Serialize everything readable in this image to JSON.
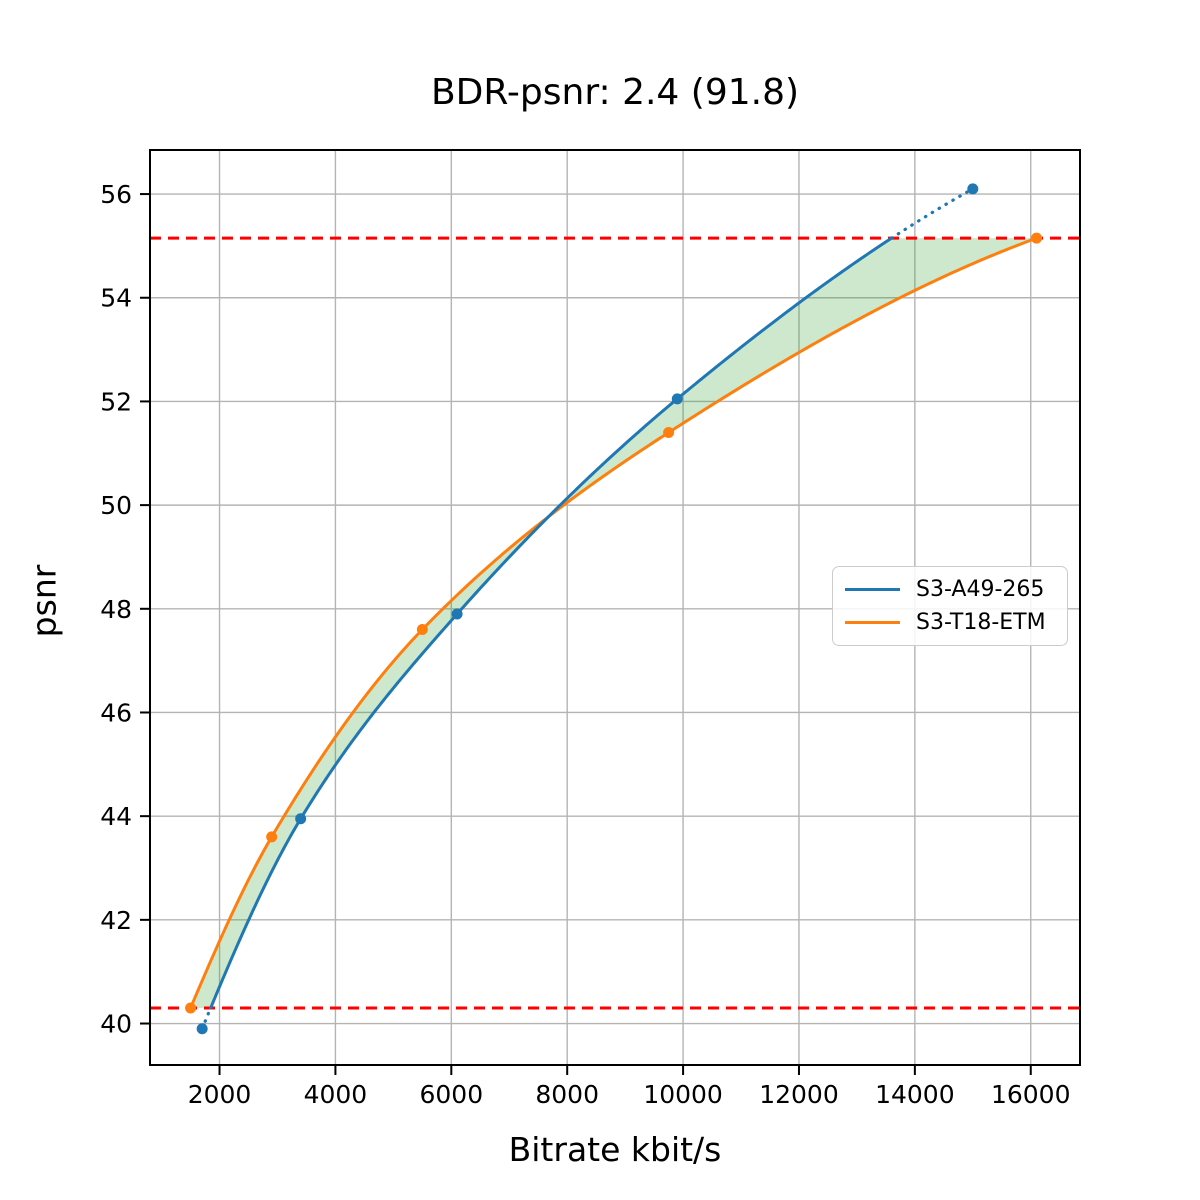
{
  "chart_data": {
    "type": "line",
    "title": "BDR-psnr: 2.4 (91.8)",
    "xlabel": "Bitrate kbit/s",
    "ylabel": "psnr",
    "xlim": [
      800,
      16850
    ],
    "ylim": [
      39.2,
      56.85
    ],
    "x_ticks": [
      2000,
      4000,
      6000,
      8000,
      10000,
      12000,
      14000,
      16000
    ],
    "y_ticks": [
      40,
      42,
      44,
      46,
      48,
      50,
      52,
      54,
      56
    ],
    "grid": true,
    "grid_color": "#b4b4b4",
    "spine_color": "#000000",
    "legend_position": "center-right",
    "series": [
      {
        "name": "S3-A49-265",
        "color": "#1f77b4",
        "marker": "circle",
        "points": [
          [
            1700,
            39.9
          ],
          [
            3400,
            43.95
          ],
          [
            6100,
            47.9
          ],
          [
            9900,
            52.05
          ],
          [
            15000,
            56.1
          ]
        ],
        "clipped_to_bounds": true
      },
      {
        "name": "S3-T18-ETM",
        "color": "#ff7f0e",
        "marker": "circle",
        "points": [
          [
            1500,
            40.3
          ],
          [
            2900,
            43.6
          ],
          [
            5500,
            47.6
          ],
          [
            9750,
            51.4
          ],
          [
            16100,
            55.15
          ]
        ],
        "clipped_to_bounds": false
      }
    ],
    "bound_lines": {
      "color": "#ff0000",
      "style": "dashed",
      "lower": 40.3,
      "upper": 55.15
    },
    "fill_between": {
      "color": "#2ca02c",
      "opacity": 0.24
    }
  }
}
